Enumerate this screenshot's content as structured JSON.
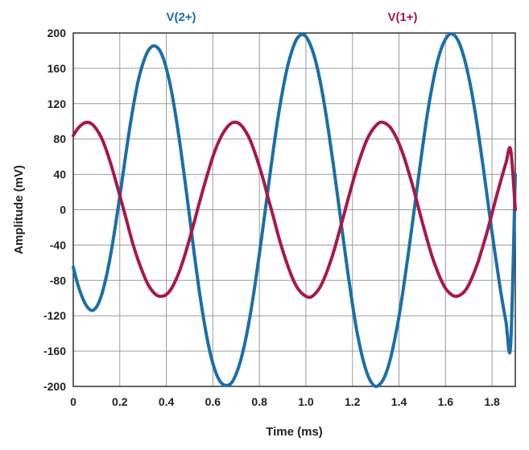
{
  "chart_data": {
    "type": "line",
    "title": "",
    "xlabel": "Time (ms)",
    "ylabel": "Amplitude (mV)",
    "xlim": [
      0,
      1.9
    ],
    "ylim": [
      -200,
      200
    ],
    "grid": true,
    "legend": "series labels printed above plot",
    "x_ticks": [
      "0",
      "0.2",
      "0.4",
      "0.6",
      "0.8",
      "1.0",
      "1.2",
      "1.4",
      "1.6",
      "1.8"
    ],
    "x_tick_values": [
      0,
      0.2,
      0.4,
      0.6,
      0.8,
      1.0,
      1.2,
      1.4,
      1.6,
      1.8
    ],
    "y_ticks": [
      "200",
      "160",
      "120",
      "80",
      "40",
      "0",
      "-40",
      "-80",
      "-120",
      "-160",
      "-200"
    ],
    "y_tick_values": [
      200,
      160,
      120,
      80,
      40,
      0,
      -40,
      -80,
      -120,
      -160,
      -200
    ],
    "series": [
      {
        "name": "V(2+)",
        "color": "#1a6fa8",
        "x": [
          0,
          0.02,
          0.04,
          0.06,
          0.08,
          0.1,
          0.12,
          0.14,
          0.16,
          0.18,
          0.2,
          0.22,
          0.24,
          0.26,
          0.28,
          0.3,
          0.32,
          0.34,
          0.36,
          0.38,
          0.4,
          0.42,
          0.44,
          0.46,
          0.48,
          0.5,
          0.52,
          0.54,
          0.56,
          0.58,
          0.6,
          0.62,
          0.64,
          0.66,
          0.68,
          0.7,
          0.72,
          0.74,
          0.76,
          0.78,
          0.8,
          0.82,
          0.84,
          0.86,
          0.88,
          0.9,
          0.92,
          0.94,
          0.96,
          0.98,
          1.0,
          1.02,
          1.04,
          1.06,
          1.08,
          1.1,
          1.12,
          1.14,
          1.16,
          1.18,
          1.2,
          1.22,
          1.24,
          1.26,
          1.28,
          1.3,
          1.32,
          1.34,
          1.36,
          1.38,
          1.4,
          1.42,
          1.44,
          1.46,
          1.48,
          1.5,
          1.52,
          1.54,
          1.56,
          1.58,
          1.6,
          1.62,
          1.64,
          1.66,
          1.68,
          1.7,
          1.72,
          1.74,
          1.76,
          1.78,
          1.8,
          1.82,
          1.84,
          1.86,
          1.88,
          1.9
        ],
        "values": [
          -65,
          -85,
          -100,
          -110,
          -114,
          -110,
          -98,
          -78,
          -52,
          -20,
          15,
          52,
          88,
          120,
          147,
          166,
          179,
          185,
          184,
          176,
          160,
          137,
          107,
          72,
          33,
          -8,
          -50,
          -89,
          -123,
          -152,
          -174,
          -189,
          -197,
          -199,
          -196,
          -186,
          -170,
          -148,
          -120,
          -87,
          -50,
          -11,
          29,
          68,
          104,
          135,
          161,
          180,
          193,
          198,
          196,
          186,
          170,
          147,
          118,
          84,
          47,
          8,
          -32,
          -71,
          -107,
          -139,
          -164,
          -183,
          -195,
          -200,
          -197,
          -188,
          -172,
          -149,
          -121,
          -87,
          -50,
          -11,
          29,
          68,
          105,
          136,
          162,
          181,
          193,
          199,
          197,
          188,
          172,
          150,
          122,
          89,
          52,
          13,
          -26,
          -62,
          -97,
          -127,
          -153,
          40
        ]
      },
      {
        "name": "V(1+)",
        "color": "#a8184a",
        "x": [
          0,
          0.02,
          0.04,
          0.06,
          0.08,
          0.1,
          0.12,
          0.14,
          0.16,
          0.18,
          0.2,
          0.22,
          0.24,
          0.26,
          0.28,
          0.3,
          0.32,
          0.34,
          0.36,
          0.38,
          0.4,
          0.42,
          0.44,
          0.46,
          0.48,
          0.5,
          0.52,
          0.54,
          0.56,
          0.58,
          0.6,
          0.62,
          0.64,
          0.66,
          0.68,
          0.7,
          0.72,
          0.74,
          0.76,
          0.78,
          0.8,
          0.82,
          0.84,
          0.86,
          0.88,
          0.9,
          0.92,
          0.94,
          0.96,
          0.98,
          1.0,
          1.02,
          1.04,
          1.06,
          1.08,
          1.1,
          1.12,
          1.14,
          1.16,
          1.18,
          1.2,
          1.22,
          1.24,
          1.26,
          1.28,
          1.3,
          1.32,
          1.34,
          1.36,
          1.38,
          1.4,
          1.42,
          1.44,
          1.46,
          1.48,
          1.5,
          1.52,
          1.54,
          1.56,
          1.58,
          1.6,
          1.62,
          1.64,
          1.66,
          1.68,
          1.7,
          1.72,
          1.74,
          1.76,
          1.78,
          1.8,
          1.82,
          1.84,
          1.86,
          1.88,
          1.9
        ],
        "values": [
          84,
          92,
          97,
          99,
          97,
          91,
          82,
          69,
          53,
          35,
          16,
          -3,
          -23,
          -42,
          -58,
          -72,
          -84,
          -92,
          -97,
          -98,
          -96,
          -90,
          -80,
          -67,
          -51,
          -33,
          -14,
          6,
          25,
          43,
          60,
          74,
          85,
          93,
          98,
          99,
          96,
          89,
          79,
          65,
          49,
          31,
          11,
          -8,
          -28,
          -46,
          -62,
          -76,
          -87,
          -94,
          -98,
          -99,
          -95,
          -88,
          -77,
          -63,
          -47,
          -28,
          -9,
          11,
          30,
          48,
          64,
          78,
          88,
          95,
          99,
          98,
          94,
          86,
          75,
          61,
          44,
          26,
          6,
          -14,
          -33,
          -51,
          -66,
          -79,
          -89,
          -95,
          -98,
          -97,
          -93,
          -85,
          -73,
          -59,
          -42,
          -24,
          -4,
          16,
          35,
          53,
          68,
          0
        ]
      }
    ]
  }
}
